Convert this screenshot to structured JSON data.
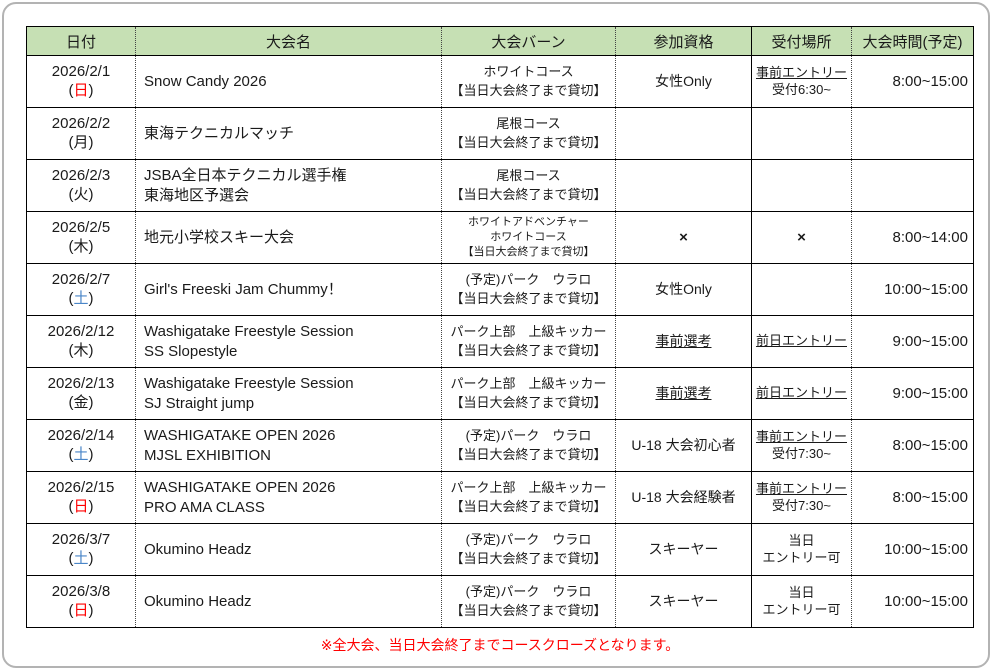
{
  "table": {
    "columns": [
      "日付",
      "大会名",
      "大会バーン",
      "参加資格",
      "受付場所",
      "大会時間(予定)"
    ],
    "column_keys": [
      "date",
      "event-name",
      "course",
      "qualification",
      "reception",
      "time"
    ],
    "header_bg": "#c6e0b4",
    "weekday_colors": {
      "日": "#ff0000",
      "土": "#4a86c8",
      "default": "#1a1a1a"
    },
    "rows": [
      {
        "date": "2026/2/1",
        "weekday": "日",
        "name_lines": [
          "Snow Candy 2026"
        ],
        "course_lines": [
          "ホワイトコース",
          "【当日大会終了まで貸切】"
        ],
        "course_small": false,
        "qualification": [
          {
            "text": "女性Only",
            "underline": false
          }
        ],
        "reception": [
          {
            "text": "事前エントリー",
            "underline": true
          },
          {
            "text": "受付6:30~",
            "underline": false
          }
        ],
        "time": "8:00~15:00"
      },
      {
        "date": "2026/2/2",
        "weekday": "月",
        "name_lines": [
          "東海テクニカルマッチ"
        ],
        "course_lines": [
          "尾根コース",
          "【当日大会終了まで貸切】"
        ],
        "course_small": false,
        "qualification": [],
        "reception": [],
        "time": ""
      },
      {
        "date": "2026/2/3",
        "weekday": "火",
        "name_lines": [
          "JSBA全日本テクニカル選手権",
          "東海地区予選会"
        ],
        "course_lines": [
          "尾根コース",
          "【当日大会終了まで貸切】"
        ],
        "course_small": false,
        "qualification": [],
        "reception": [],
        "time": ""
      },
      {
        "date": "2026/2/5",
        "weekday": "木",
        "name_lines": [
          "地元小学校スキー大会"
        ],
        "course_lines": [
          "ホワイトアドベンチャー",
          "ホワイトコース",
          "【当日大会終了まで貸切】"
        ],
        "course_small": true,
        "qualification": [
          {
            "text": "×",
            "underline": false
          }
        ],
        "reception": [
          {
            "text": "×",
            "underline": false
          }
        ],
        "time": "8:00~14:00"
      },
      {
        "date": "2026/2/7",
        "weekday": "土",
        "name_lines": [
          "Girl's Freeski Jam Chummy！"
        ],
        "course_lines": [
          "(予定)パーク　ウラロ",
          "【当日大会終了まで貸切】"
        ],
        "course_small": false,
        "qualification": [
          {
            "text": "女性Only",
            "underline": false
          }
        ],
        "reception": [],
        "time": "10:00~15:00"
      },
      {
        "date": "2026/2/12",
        "weekday": "木",
        "name_lines": [
          "Washigatake Freestyle Session",
          "SS Slopestyle"
        ],
        "course_lines": [
          "パーク上部　上級キッカー",
          "【当日大会終了まで貸切】"
        ],
        "course_small": false,
        "qualification": [
          {
            "text": "事前選考",
            "underline": true
          }
        ],
        "reception": [
          {
            "text": "前日エントリー",
            "underline": true
          }
        ],
        "time": "9:00~15:00"
      },
      {
        "date": "2026/2/13",
        "weekday": "金",
        "name_lines": [
          "Washigatake Freestyle Session",
          "SJ Straight jump"
        ],
        "course_lines": [
          "パーク上部　上級キッカー",
          "【当日大会終了まで貸切】"
        ],
        "course_small": false,
        "qualification": [
          {
            "text": "事前選考",
            "underline": true
          }
        ],
        "reception": [
          {
            "text": "前日エントリー",
            "underline": true
          }
        ],
        "time": "9:00~15:00"
      },
      {
        "date": "2026/2/14",
        "weekday": "土",
        "name_lines": [
          "WASHIGATAKE OPEN 2026",
          "MJSL EXHIBITION"
        ],
        "course_lines": [
          "(予定)パーク　ウラロ",
          "【当日大会終了まで貸切】"
        ],
        "course_small": false,
        "qualification": [
          {
            "text": "U-18 大会初心者",
            "underline": false
          }
        ],
        "reception": [
          {
            "text": "事前エントリー",
            "underline": true
          },
          {
            "text": "受付7:30~",
            "underline": false
          }
        ],
        "time": "8:00~15:00"
      },
      {
        "date": "2026/2/15",
        "weekday": "日",
        "name_lines": [
          "WASHIGATAKE OPEN 2026",
          "PRO AMA CLASS"
        ],
        "course_lines": [
          "パーク上部　上級キッカー",
          "【当日大会終了まで貸切】"
        ],
        "course_small": false,
        "qualification": [
          {
            "text": "U-18 大会経験者",
            "underline": false
          }
        ],
        "reception": [
          {
            "text": "事前エントリー",
            "underline": true
          },
          {
            "text": "受付7:30~",
            "underline": false
          }
        ],
        "time": "8:00~15:00"
      },
      {
        "date": "2026/3/7",
        "weekday": "土",
        "name_lines": [
          "Okumino Headz"
        ],
        "course_lines": [
          "(予定)パーク　ウラロ",
          "【当日大会終了まで貸切】"
        ],
        "course_small": false,
        "qualification": [
          {
            "text": "スキーヤー",
            "underline": false
          }
        ],
        "reception": [
          {
            "text": "当日",
            "underline": false
          },
          {
            "text": "エントリー可",
            "underline": false
          }
        ],
        "time": "10:00~15:00"
      },
      {
        "date": "2026/3/8",
        "weekday": "日",
        "name_lines": [
          "Okumino Headz"
        ],
        "course_lines": [
          "(予定)パーク　ウラロ",
          "【当日大会終了まで貸切】"
        ],
        "course_small": false,
        "qualification": [
          {
            "text": "スキーヤー",
            "underline": false
          }
        ],
        "reception": [
          {
            "text": "当日",
            "underline": false
          },
          {
            "text": "エントリー可",
            "underline": false
          }
        ],
        "time": "10:00~15:00"
      }
    ]
  },
  "footer": {
    "note": "※全大会、当日大会終了までコースクローズとなります。",
    "color": "#ff0000"
  }
}
